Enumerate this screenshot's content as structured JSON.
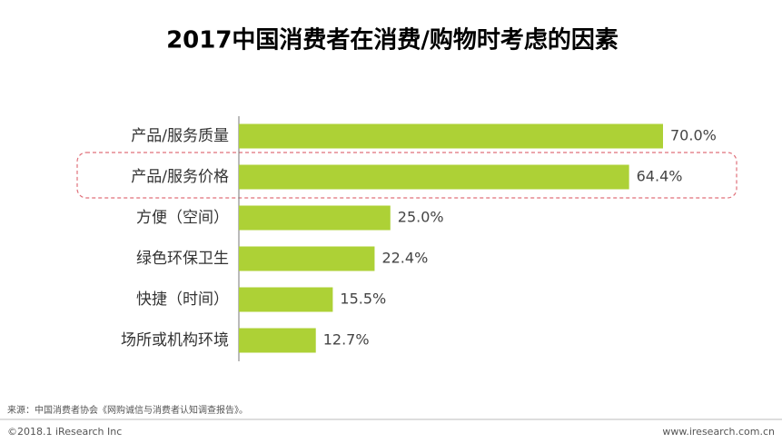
{
  "chart_data": {
    "type": "bar",
    "orientation": "horizontal",
    "title": "2017中国消费者在消费/购物时考虑的因素",
    "categories": [
      "产品/服务质量",
      "产品/服务价格",
      "方便（空间）",
      "绿色环保卫生",
      "快捷（时间）",
      "场所或机构环境"
    ],
    "values": [
      70.0,
      64.4,
      25.0,
      22.4,
      15.5,
      12.7
    ],
    "value_labels": [
      "70.0%",
      "64.4%",
      "25.0%",
      "22.4%",
      "15.5%",
      "12.7%"
    ],
    "color": "#add136"
  },
  "footer": {
    "source": "来源：中国消费者协会《网购诚信与消费者认知调查报告》。",
    "copyright": "©2018.1 iResearch Inc",
    "website": "www.iresearch.com.cn"
  }
}
